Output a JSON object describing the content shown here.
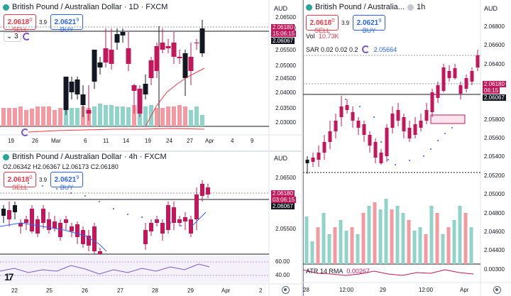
{
  "charts": {
    "daily": {
      "title": "British Pound / Australian Dollar · 1D · FXCM",
      "sell_price": "2.0618",
      "sell_sup": "0",
      "sell_label": "SELL",
      "spread": "3.9",
      "buy_price": "2.0621",
      "buy_sup": "9",
      "buy_label": "BUY",
      "indicator_count": "3",
      "axis_unit": "AUD",
      "y_ticks": [
        "2.06500",
        "2.06000",
        "2.05500",
        "2.05000",
        "2.04500",
        "2.04000",
        "2.03500",
        "2.03000"
      ],
      "price_tag": "2.06180",
      "countdown": "15:06:15",
      "level_tag": "2.06067",
      "x_ticks": [
        "19",
        "26",
        "Mar",
        "6",
        "11",
        "14",
        "19",
        "24",
        "27",
        "Apr",
        "4",
        "9"
      ]
    },
    "four_hour": {
      "title": "British Pound / Australian Dollar · 4h · FXCM",
      "ohlc": {
        "o_label": "O",
        "o": "2.06342",
        "h_label": "H",
        "h": "2.06367",
        "l_label": "L",
        "l": "2.06173",
        "c_label": "C",
        "c": "2.06180"
      },
      "sell_price": "2.0618",
      "sell_sup": "0",
      "sell_label": "SELL",
      "spread": "3.9",
      "buy_price": "2.0621",
      "buy_sup": "9",
      "buy_label": "BUY",
      "axis_unit": "AUD",
      "y_ticks": [
        "2.06500",
        "2.05500"
      ],
      "price_tag": "2.06180",
      "countdown": "03:06:15",
      "level_tag": "2.06067",
      "osc_ticks": [
        "60.00",
        "40.00"
      ],
      "x_ticks": [
        "22",
        "25",
        "26",
        "27",
        "28",
        "29",
        "Apr",
        "2"
      ]
    },
    "hourly": {
      "title": "British Pound / Australia...",
      "timeframe": "1h",
      "sell_price": "2.0618",
      "sell_sup": "0",
      "sell_label": "SELL",
      "spread": "3.9",
      "buy_price": "2.0621",
      "buy_sup": "9",
      "buy_label": "BUY",
      "vol_label": "Vol",
      "vol_value": "10.73K",
      "sar_label": "SAR 0.02 0.02 0.2",
      "sar_value": "2.05664",
      "axis_unit": "AUD",
      "y_ticks": [
        "2.06800",
        "2.06600",
        "2.06400",
        "2.05800",
        "2.05600",
        "2.05400",
        "2.05200",
        "2.05000",
        "2.04800",
        "2.04600",
        "2.04400"
      ],
      "price_tag": "2.06180",
      "countdown": "06:15",
      "level_tag": "2.06067",
      "atr_label": "ATR 14 RMA",
      "atr_value": "0.00267",
      "atr_tick": "0.00300",
      "x_ticks": [
        "28",
        "12:00",
        "29",
        "12:00",
        "Apr"
      ]
    }
  },
  "colors": {
    "up": "#131722",
    "down": "#c2185b",
    "vol_up": "#8fd3c9",
    "vol_down": "#f29a9f",
    "sar": "#2962ff",
    "ma": "#f23645",
    "osc": "#7e57c2"
  },
  "icons": {
    "tradingview_logo": "tv-logo",
    "settings": "gear-icon",
    "indicator_sync": "refresh-icon"
  }
}
